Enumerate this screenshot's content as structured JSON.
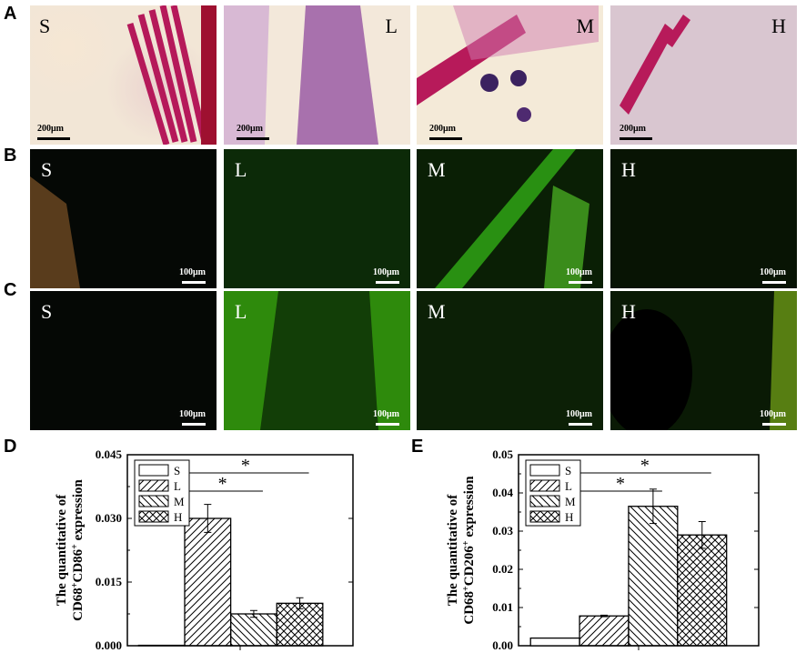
{
  "panels": {
    "row_a": {
      "label": "A",
      "tiles": [
        {
          "letter": "S",
          "scale": "200μm"
        },
        {
          "letter": "L",
          "scale": "200μm"
        },
        {
          "letter": "M",
          "scale": "200μm"
        },
        {
          "letter": "H",
          "scale": "200μm"
        }
      ]
    },
    "row_b": {
      "label": "B",
      "tiles": [
        {
          "letter": "S",
          "scale": "100μm"
        },
        {
          "letter": "L",
          "scale": "100μm"
        },
        {
          "letter": "M",
          "scale": "100μm"
        },
        {
          "letter": "H",
          "scale": "100μm"
        }
      ]
    },
    "row_c": {
      "label": "C",
      "tiles": [
        {
          "letter": "S",
          "scale": "100μm"
        },
        {
          "letter": "L",
          "scale": "100μm"
        },
        {
          "letter": "M",
          "scale": "100μm"
        },
        {
          "letter": "H",
          "scale": "100μm"
        }
      ]
    }
  },
  "chart_data": [
    {
      "panel_label": "D",
      "type": "bar",
      "categories": [
        "S",
        "L",
        "M",
        "H"
      ],
      "values": [
        0.0001,
        0.03,
        0.0075,
        0.01
      ],
      "errors": [
        0,
        0.0033,
        0.0008,
        0.0013
      ],
      "ylabel_line1": "The quantitative of",
      "ylabel_line2_html": "CD68<tspan baseline-shift=\"super\" font-size=\"10\">+</tspan>CD86<tspan baseline-shift=\"super\" font-size=\"10\">+</tspan> expression",
      "ylim": [
        0,
        0.045
      ],
      "yticks": [
        "0.000",
        "0.015",
        "0.030",
        "0.045"
      ],
      "ytick_values": [
        0,
        0.015,
        0.03,
        0.045
      ],
      "legend": [
        "S",
        "L",
        "M",
        "H"
      ],
      "significance": [
        {
          "from": "L",
          "to": "M",
          "label": "*"
        },
        {
          "from": "L",
          "to": "H",
          "label": "*"
        }
      ]
    },
    {
      "panel_label": "E",
      "type": "bar",
      "categories": [
        "S",
        "L",
        "M",
        "H"
      ],
      "values": [
        0.002,
        0.0078,
        0.0365,
        0.029
      ],
      "errors": [
        0,
        0.0002,
        0.0045,
        0.0035
      ],
      "ylabel_line1": "The quantitative of",
      "ylabel_line2_html": "CD68<tspan baseline-shift=\"super\" font-size=\"10\">+</tspan>CD206<tspan baseline-shift=\"super\" font-size=\"10\">+</tspan> expression",
      "ylim": [
        0,
        0.05
      ],
      "yticks": [
        "0.00",
        "0.01",
        "0.02",
        "0.03",
        "0.04",
        "0.05"
      ],
      "ytick_values": [
        0,
        0.01,
        0.02,
        0.03,
        0.04,
        0.05
      ],
      "legend": [
        "S",
        "L",
        "M",
        "H"
      ],
      "significance": [
        {
          "from": "L",
          "to": "M",
          "label": "*"
        },
        {
          "from": "L",
          "to": "H",
          "label": "*"
        }
      ]
    }
  ]
}
